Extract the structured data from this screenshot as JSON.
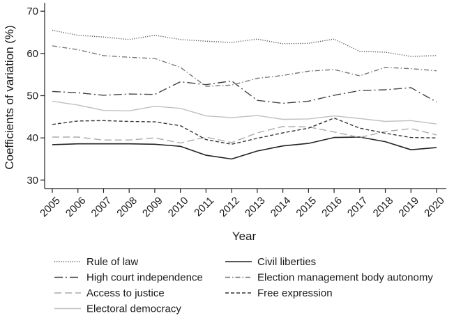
{
  "chart_data": {
    "type": "line",
    "xlabel": "Year",
    "ylabel": "Coefficients of variation (%)",
    "x": [
      2005,
      2006,
      2007,
      2008,
      2009,
      2010,
      2011,
      2012,
      2013,
      2014,
      2015,
      2016,
      2017,
      2018,
      2019,
      2020
    ],
    "ylim": [
      28,
      72
    ],
    "yticks": [
      30,
      40,
      50,
      60,
      70
    ],
    "grid": false,
    "legend_position": "bottom",
    "series": [
      {
        "name": "Rule of law",
        "style": "dotted",
        "color": "#555555",
        "values": [
          65.5,
          64.3,
          63.9,
          63.3,
          64.3,
          63.3,
          62.9,
          62.6,
          63.4,
          62.3,
          62.4,
          63.4,
          60.5,
          60.3,
          59.3,
          59.5
        ]
      },
      {
        "name": "Civil liberties",
        "style": "solid",
        "color": "#222222",
        "values": [
          38.4,
          38.6,
          38.6,
          38.6,
          38.5,
          38.0,
          35.9,
          35.0,
          36.9,
          38.1,
          38.7,
          40.1,
          40.2,
          39.1,
          37.2,
          37.7
        ]
      },
      {
        "name": "High court independence",
        "style": "longdash-dot",
        "color": "#444444",
        "values": [
          51.0,
          50.7,
          50.1,
          50.4,
          50.3,
          53.3,
          52.6,
          53.5,
          48.9,
          48.2,
          48.7,
          50.1,
          51.2,
          51.4,
          51.9,
          48.5
        ]
      },
      {
        "name": "Election management body autonomy",
        "style": "dash-dot",
        "color": "#777777",
        "values": [
          61.8,
          60.9,
          59.5,
          59.1,
          58.8,
          56.7,
          52.2,
          52.5,
          54.1,
          54.8,
          55.8,
          56.2,
          54.7,
          56.7,
          56.4,
          55.9
        ]
      },
      {
        "name": "Access to justice",
        "style": "longdash",
        "color": "#aaaaaa",
        "values": [
          40.2,
          40.2,
          39.5,
          39.5,
          40.0,
          38.8,
          40.2,
          38.9,
          41.2,
          42.7,
          42.6,
          41.4,
          40.1,
          41.5,
          42.2,
          40.7
        ]
      },
      {
        "name": "Free expression",
        "style": "dashed",
        "color": "#333333",
        "values": [
          43.2,
          44.0,
          44.1,
          43.9,
          43.8,
          42.9,
          39.6,
          38.5,
          39.9,
          41.2,
          42.3,
          44.7,
          42.3,
          41.1,
          40.1,
          40.0
        ]
      },
      {
        "name": "Electoral democracy",
        "style": "solid",
        "color": "#c0c0c0",
        "values": [
          48.7,
          47.8,
          46.5,
          46.4,
          47.5,
          47.0,
          45.2,
          44.8,
          45.3,
          44.4,
          44.5,
          45.2,
          44.6,
          43.9,
          44.1,
          43.3
        ]
      }
    ]
  }
}
